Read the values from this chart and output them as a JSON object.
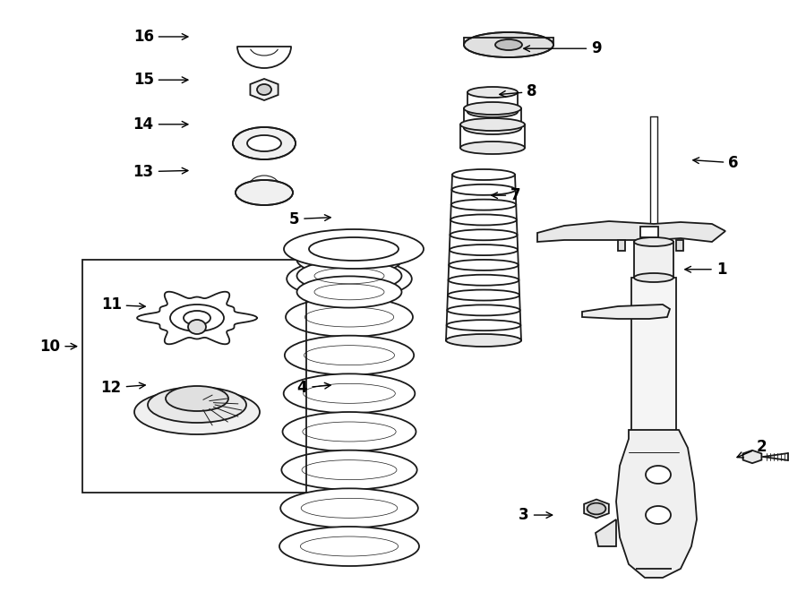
{
  "bg_color": "#ffffff",
  "line_color": "#1a1a1a",
  "lw": 1.3,
  "fig_w": 9.0,
  "fig_h": 6.61,
  "labels": [
    [
      1,
      0.895,
      0.455,
      0.845,
      0.455
    ],
    [
      2,
      0.945,
      0.755,
      0.91,
      0.775
    ],
    [
      3,
      0.65,
      0.87,
      0.69,
      0.87
    ],
    [
      4,
      0.375,
      0.655,
      0.415,
      0.65
    ],
    [
      5,
      0.365,
      0.37,
      0.415,
      0.367
    ],
    [
      6,
      0.91,
      0.275,
      0.855,
      0.27
    ],
    [
      7,
      0.64,
      0.33,
      0.605,
      0.33
    ],
    [
      8,
      0.66,
      0.155,
      0.615,
      0.16
    ],
    [
      9,
      0.74,
      0.082,
      0.645,
      0.082
    ],
    [
      10,
      0.062,
      0.585,
      0.1,
      0.585
    ],
    [
      11,
      0.138,
      0.515,
      0.185,
      0.518
    ],
    [
      12,
      0.138,
      0.655,
      0.185,
      0.65
    ],
    [
      13,
      0.178,
      0.29,
      0.238,
      0.288
    ],
    [
      14,
      0.178,
      0.21,
      0.238,
      0.21
    ],
    [
      15,
      0.178,
      0.135,
      0.238,
      0.135
    ],
    [
      16,
      0.178,
      0.062,
      0.238,
      0.062
    ]
  ]
}
